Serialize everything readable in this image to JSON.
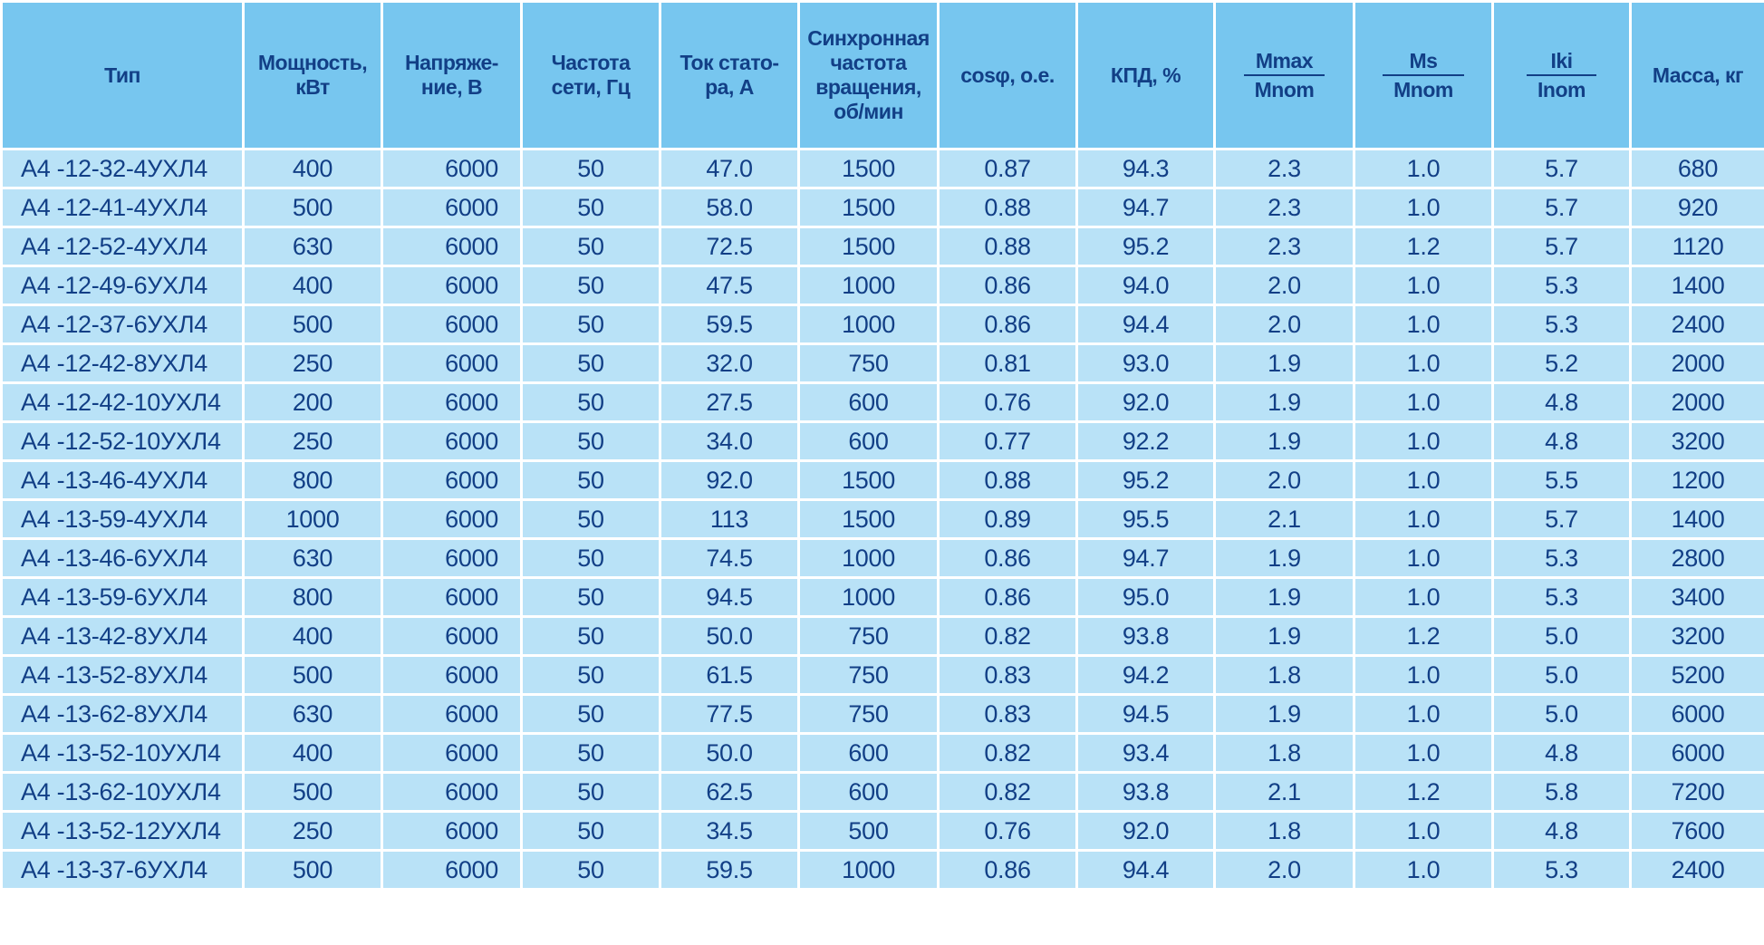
{
  "table": {
    "headers": {
      "type": "Тип",
      "power": "Мощность, кВт",
      "voltage": "Напряже- ние, В",
      "freq": "Частота сети, Гц",
      "current": "Ток стато- ра, А",
      "sync": "Синхронная частота вращения, об/мин",
      "cos": "cosφ, о.е.",
      "eff": "КПД, %",
      "mmax_num": "Mmax",
      "mmax_den": "Mnom",
      "ms_num": "Ms",
      "ms_den": "Mnom",
      "iki_num": "Iki",
      "iki_den": "Inom",
      "mass": "Масса, кг"
    },
    "rows": [
      [
        "А4 -12-32-4УХЛ4",
        "400",
        "6000",
        "50",
        "47.0",
        "1500",
        "0.87",
        "94.3",
        "2.3",
        "1.0",
        "5.7",
        "680"
      ],
      [
        "А4 -12-41-4УХЛ4",
        "500",
        "6000",
        "50",
        "58.0",
        "1500",
        "0.88",
        "94.7",
        "2.3",
        "1.0",
        "5.7",
        "920"
      ],
      [
        "А4 -12-52-4УХЛ4",
        "630",
        "6000",
        "50",
        "72.5",
        "1500",
        "0.88",
        "95.2",
        "2.3",
        "1.2",
        "5.7",
        "1120"
      ],
      [
        "А4 -12-49-6УХЛ4",
        "400",
        "6000",
        "50",
        "47.5",
        "1000",
        "0.86",
        "94.0",
        "2.0",
        "1.0",
        "5.3",
        "1400"
      ],
      [
        "А4 -12-37-6УХЛ4",
        "500",
        "6000",
        "50",
        "59.5",
        "1000",
        "0.86",
        "94.4",
        "2.0",
        "1.0",
        "5.3",
        "2400"
      ],
      [
        "А4 -12-42-8УХЛ4",
        "250",
        "6000",
        "50",
        "32.0",
        "750",
        "0.81",
        "93.0",
        "1.9",
        "1.0",
        "5.2",
        "2000"
      ],
      [
        "А4 -12-42-10УХЛ4",
        "200",
        "6000",
        "50",
        "27.5",
        "600",
        "0.76",
        "92.0",
        "1.9",
        "1.0",
        "4.8",
        "2000"
      ],
      [
        "А4 -12-52-10УХЛ4",
        "250",
        "6000",
        "50",
        "34.0",
        "600",
        "0.77",
        "92.2",
        "1.9",
        "1.0",
        "4.8",
        "3200"
      ],
      [
        "А4 -13-46-4УХЛ4",
        "800",
        "6000",
        "50",
        "92.0",
        "1500",
        "0.88",
        "95.2",
        "2.0",
        "1.0",
        "5.5",
        "1200"
      ],
      [
        "А4 -13-59-4УХЛ4",
        "1000",
        "6000",
        "50",
        "113",
        "1500",
        "0.89",
        "95.5",
        "2.1",
        "1.0",
        "5.7",
        "1400"
      ],
      [
        "А4 -13-46-6УХЛ4",
        "630",
        "6000",
        "50",
        "74.5",
        "1000",
        "0.86",
        "94.7",
        "1.9",
        "1.0",
        "5.3",
        "2800"
      ],
      [
        "А4 -13-59-6УХЛ4",
        "800",
        "6000",
        "50",
        "94.5",
        "1000",
        "0.86",
        "95.0",
        "1.9",
        "1.0",
        "5.3",
        "3400"
      ],
      [
        "А4 -13-42-8УХЛ4",
        "400",
        "6000",
        "50",
        "50.0",
        "750",
        "0.82",
        "93.8",
        "1.9",
        "1.2",
        "5.0",
        "3200"
      ],
      [
        "А4 -13-52-8УХЛ4",
        "500",
        "6000",
        "50",
        "61.5",
        "750",
        "0.83",
        "94.2",
        "1.8",
        "1.0",
        "5.0",
        "5200"
      ],
      [
        "А4 -13-62-8УХЛ4",
        "630",
        "6000",
        "50",
        "77.5",
        "750",
        "0.83",
        "94.5",
        "1.9",
        "1.0",
        "5.0",
        "6000"
      ],
      [
        "А4 -13-52-10УХЛ4",
        "400",
        "6000",
        "50",
        "50.0",
        "600",
        "0.82",
        "93.4",
        "1.8",
        "1.0",
        "4.8",
        "6000"
      ],
      [
        "А4 -13-62-10УХЛ4",
        "500",
        "6000",
        "50",
        "62.5",
        "600",
        "0.82",
        "93.8",
        "2.1",
        "1.2",
        "5.8",
        "7200"
      ],
      [
        "А4 -13-52-12УХЛ4",
        "250",
        "6000",
        "50",
        "34.5",
        "500",
        "0.76",
        "92.0",
        "1.8",
        "1.0",
        "4.8",
        "7600"
      ],
      [
        "А4 -13-37-6УХЛ4",
        "500",
        "6000",
        "50",
        "59.5",
        "1000",
        "0.86",
        "94.4",
        "2.0",
        "1.0",
        "5.3",
        "2400"
      ]
    ]
  },
  "colors": {
    "header_bg": "#77c6ef",
    "row_bg": "#b9e2f7",
    "text": "#123f86",
    "grid": "#ffffff"
  }
}
